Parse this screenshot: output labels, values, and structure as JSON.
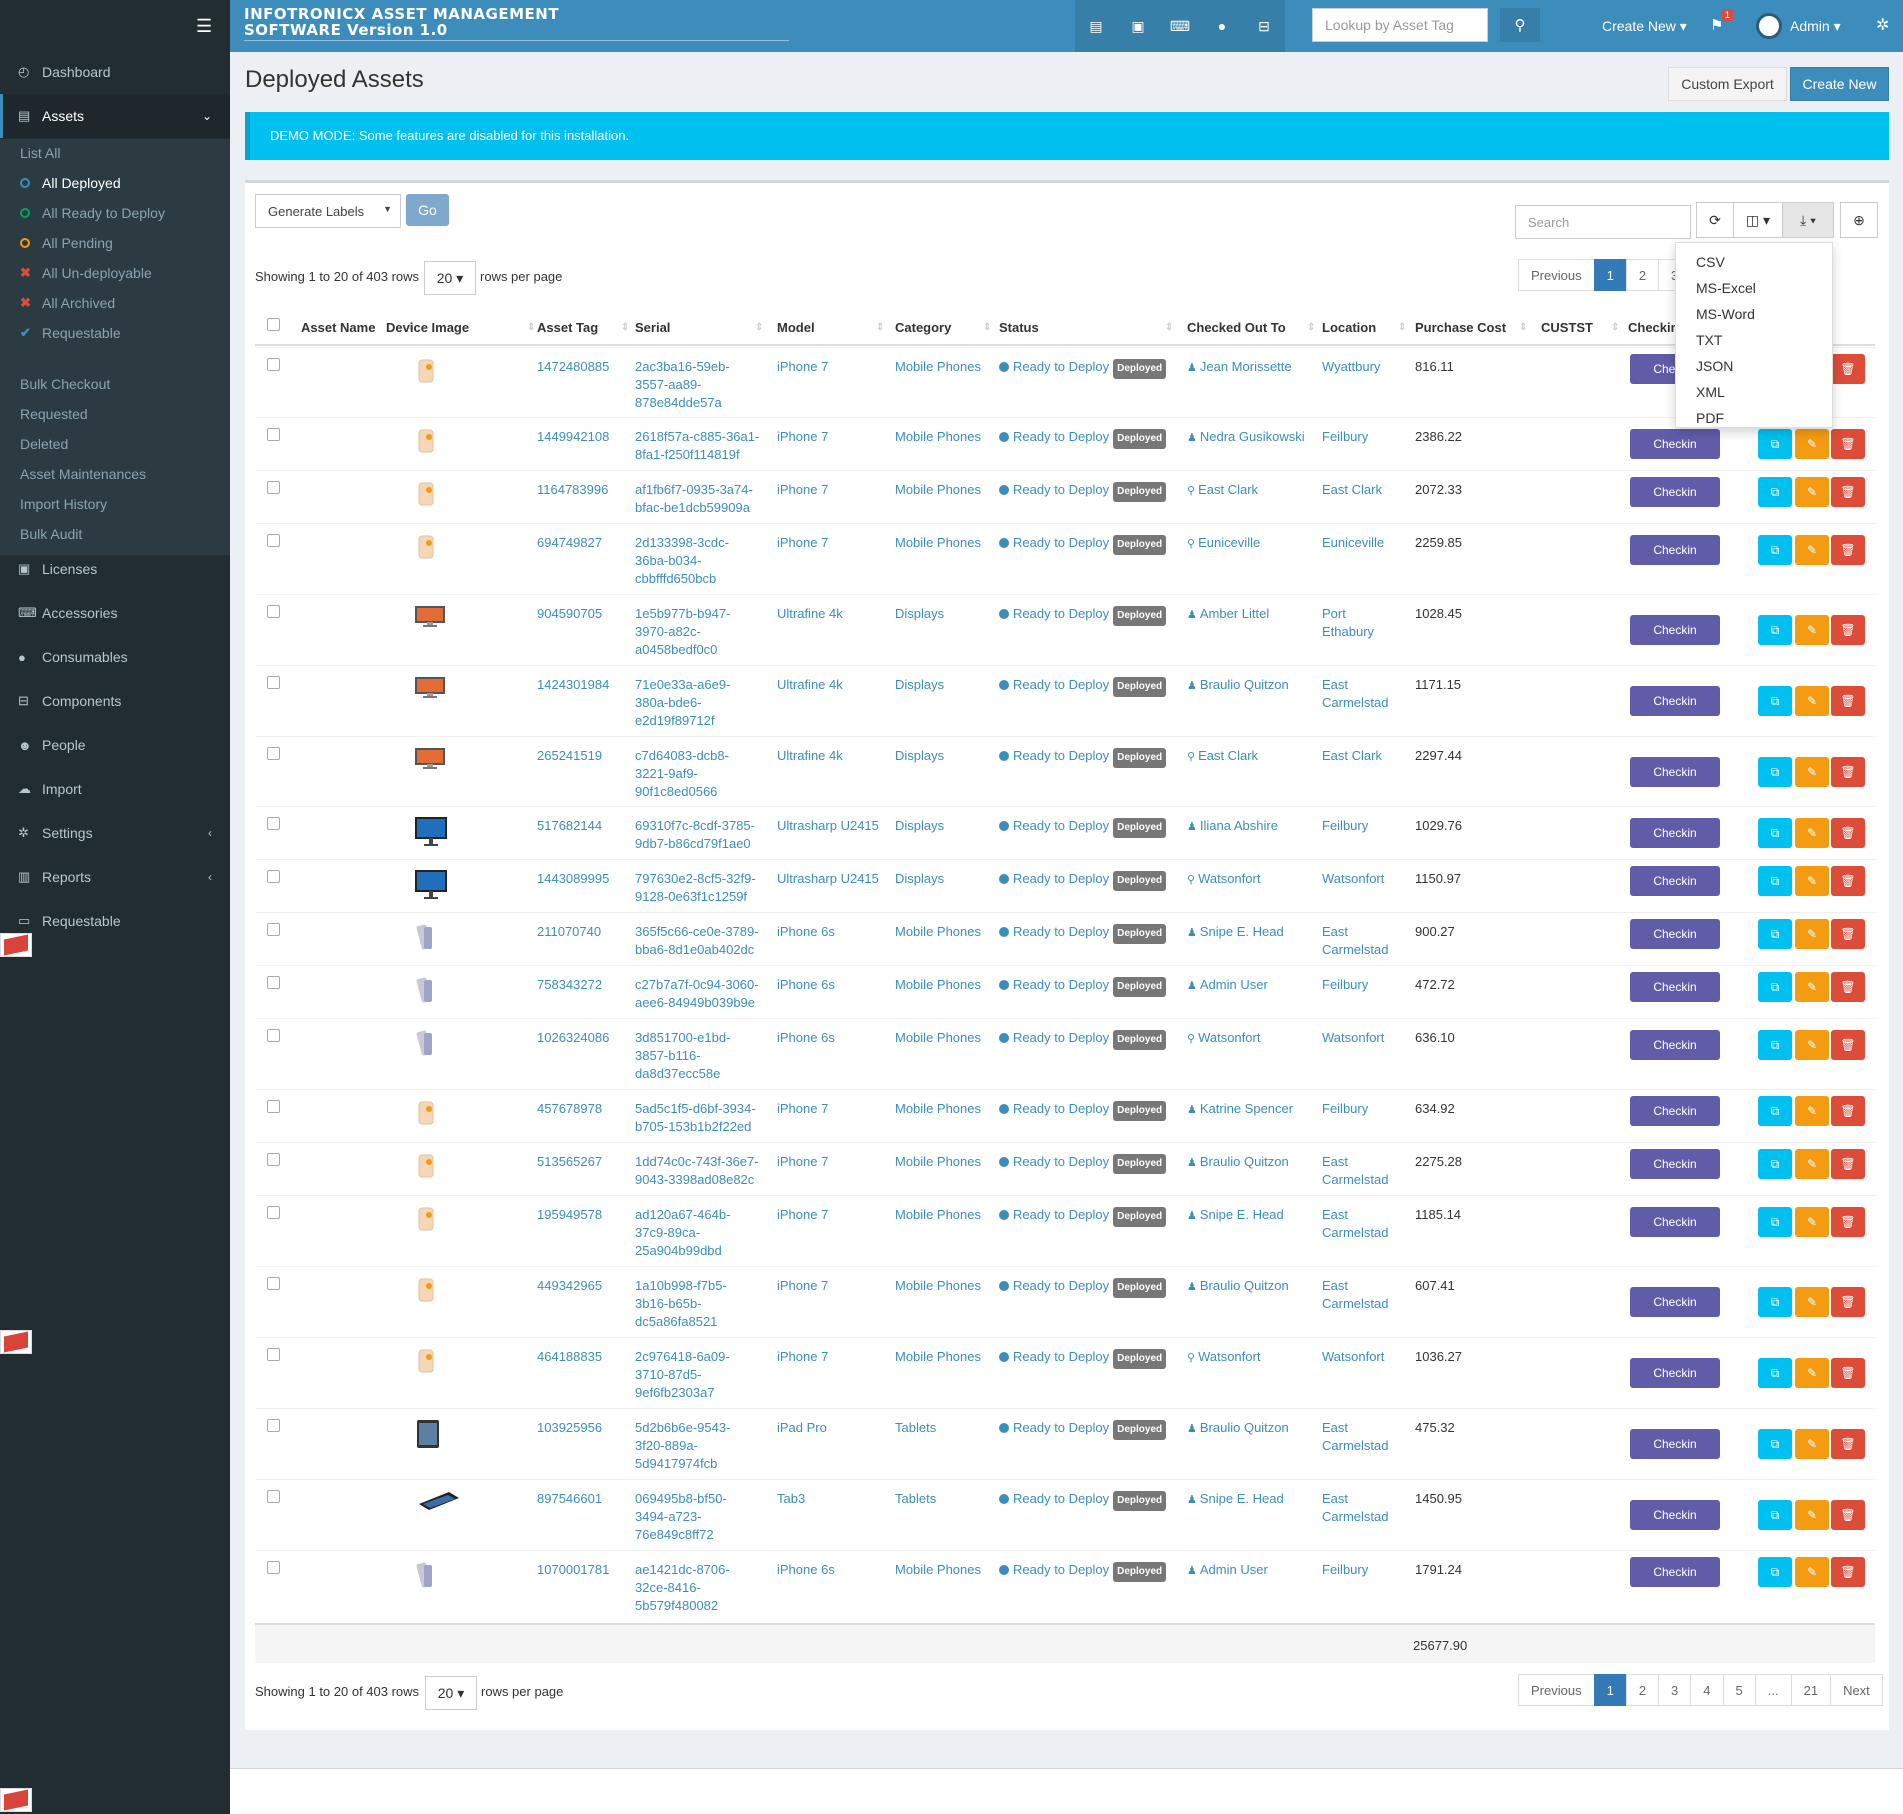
{
  "brand": {
    "line1": "INFOTRONICX ASSET MANAGEMENT",
    "line2": "SOFTWARE Version 1.0"
  },
  "topbar": {
    "lookup_placeholder": "Lookup by Asset Tag",
    "create_new": "Create New ▾",
    "alert_count": "1",
    "user": "Admin ▾",
    "icons": [
      "assets-icon",
      "licenses-icon",
      "accessories-icon",
      "consumables-icon",
      "components-icon"
    ]
  },
  "sidebar": {
    "items": [
      {
        "label": "Dashboard",
        "icon": "dashboard-icon"
      },
      {
        "label": "Assets",
        "icon": "assets-icon"
      },
      {
        "label": "Licenses",
        "icon": "licenses-icon"
      },
      {
        "label": "Accessories",
        "icon": "accessories-icon"
      },
      {
        "label": "Consumables",
        "icon": "consumables-icon"
      },
      {
        "label": "Components",
        "icon": "components-icon"
      },
      {
        "label": "People",
        "icon": "people-icon"
      },
      {
        "label": "Import",
        "icon": "import-icon"
      },
      {
        "label": "Settings",
        "icon": "settings-icon"
      },
      {
        "label": "Reports",
        "icon": "reports-icon"
      },
      {
        "label": "Requestable",
        "icon": "laptop-icon"
      }
    ],
    "asset_sub": [
      {
        "label": "List All"
      },
      {
        "label": "All Deployed",
        "color": "#3c8dbc"
      },
      {
        "label": "All Ready to Deploy",
        "color": "#00a65a"
      },
      {
        "label": "All Pending",
        "color": "#f39c12"
      },
      {
        "label": "All Un-deployable",
        "color": "#dd4b39"
      },
      {
        "label": "All Archived",
        "color": "#dd4b39"
      },
      {
        "label": "Requestable",
        "color": "#3c8dbc"
      },
      {
        "label": "Bulk Checkout"
      },
      {
        "label": "Requested"
      },
      {
        "label": "Deleted"
      },
      {
        "label": "Asset Maintenances"
      },
      {
        "label": "Import History"
      },
      {
        "label": "Bulk Audit"
      }
    ]
  },
  "page": {
    "title": "Deployed Assets",
    "custom_export": "Custom Export",
    "create_new": "Create New",
    "demo_notice": "DEMO MODE: Some features are disabled for this installation.",
    "generate_labels": "Generate Labels",
    "go": "Go",
    "search_placeholder": "Search",
    "showing": "Showing 1 to 20 of 403 rows",
    "rows_per_page_value": "20 ▾",
    "rows_per_page_suffix": "rows per page",
    "total_purchase_cost": "25677.90"
  },
  "export_menu": [
    "CSV",
    "MS-Excel",
    "MS-Word",
    "TXT",
    "JSON",
    "XML",
    "PDF"
  ],
  "pagination": {
    "top": [
      "Previous",
      "1",
      "2",
      "3",
      "Next"
    ],
    "bottom": [
      "Previous",
      "1",
      "2",
      "3",
      "4",
      "5",
      "...",
      "21",
      "Next"
    ]
  },
  "columns": [
    "Asset Name",
    "Device Image",
    "Asset Tag",
    "Serial",
    "Model",
    "Category",
    "Status",
    "Checked Out To",
    "Location",
    "Purchase Cost",
    "CUSTST",
    "Checkin"
  ],
  "status_label": "Ready to Deploy",
  "status_badge": "Deployed",
  "checkin_label": "Checkin",
  "rows": [
    {
      "tag": "1472480885",
      "serial": [
        "2ac3ba16-59eb-",
        "3557-aa89-",
        "878e84dde57a"
      ],
      "model": "iPhone 7",
      "category": "Mobile Phones",
      "to": "Jean Morissette",
      "to_type": "user",
      "loc": [
        "Wyattbury"
      ],
      "cost": "816.11",
      "img": "iphone7"
    },
    {
      "tag": "1449942108",
      "serial": [
        "2618f57a-c885-36a1-",
        "8fa1-f250f114819f"
      ],
      "model": "iPhone 7",
      "category": "Mobile Phones",
      "to": "Nedra Gusikowski",
      "to_type": "user",
      "loc": [
        "Feilbury"
      ],
      "cost": "2386.22",
      "img": "iphone7"
    },
    {
      "tag": "1164783996",
      "serial": [
        "af1fb6f7-0935-3a74-",
        "bfac-be1dcb59909a"
      ],
      "model": "iPhone 7",
      "category": "Mobile Phones",
      "to": "East Clark",
      "to_type": "location",
      "loc": [
        "East Clark"
      ],
      "cost": "2072.33",
      "img": "iphone7"
    },
    {
      "tag": "694749827",
      "serial": [
        "2d133398-3cdc-",
        "36ba-b034-",
        "cbbfffd650bcb"
      ],
      "model": "iPhone 7",
      "category": "Mobile Phones",
      "to": "Euniceville",
      "to_type": "location",
      "loc": [
        "Euniceville"
      ],
      "cost": "2259.85",
      "img": "iphone7"
    },
    {
      "tag": "904590705",
      "serial": [
        "1e5b977b-b947-",
        "3970-a82c-",
        "a0458bedf0c0"
      ],
      "model": "Ultrafine 4k",
      "category": "Displays",
      "to": "Amber Littel",
      "to_type": "user",
      "loc": [
        "Port",
        "Ethabury"
      ],
      "cost": "1028.45",
      "img": "ultrafine"
    },
    {
      "tag": "1424301984",
      "serial": [
        "71e0e33a-a6e9-",
        "380a-bde6-",
        "e2d19f89712f"
      ],
      "model": "Ultrafine 4k",
      "category": "Displays",
      "to": "Braulio Quitzon",
      "to_type": "user",
      "loc": [
        "East",
        "Carmelstad"
      ],
      "cost": "1171.15",
      "img": "ultrafine"
    },
    {
      "tag": "265241519",
      "serial": [
        "c7d64083-dcb8-",
        "3221-9af9-",
        "90f1c8ed0566"
      ],
      "model": "Ultrafine 4k",
      "category": "Displays",
      "to": "East Clark",
      "to_type": "location",
      "loc": [
        "East Clark"
      ],
      "cost": "2297.44",
      "img": "ultrafine"
    },
    {
      "tag": "517682144",
      "serial": [
        "69310f7c-8cdf-3785-",
        "9db7-b86cd79f1ae0"
      ],
      "model": "Ultrasharp U2415",
      "category": "Displays",
      "to": "Iliana Abshire",
      "to_type": "user",
      "loc": [
        "Feilbury"
      ],
      "cost": "1029.76",
      "img": "ultrasharp"
    },
    {
      "tag": "1443089995",
      "serial": [
        "797630e2-8cf5-32f9-",
        "9128-0e63f1c1259f"
      ],
      "model": "Ultrasharp U2415",
      "category": "Displays",
      "to": "Watsonfort",
      "to_type": "location",
      "loc": [
        "Watsonfort"
      ],
      "cost": "1150.97",
      "img": "ultrasharp"
    },
    {
      "tag": "211070740",
      "serial": [
        "365f5c66-ce0e-3789-",
        "bba6-8d1e0ab402dc"
      ],
      "model": "iPhone 6s",
      "category": "Mobile Phones",
      "to": "Snipe E. Head",
      "to_type": "user",
      "loc": [
        "East",
        "Carmelstad"
      ],
      "cost": "900.27",
      "img": "iphone6s"
    },
    {
      "tag": "758343272",
      "serial": [
        "c27b7a7f-0c94-3060-",
        "aee6-84949b039b9e"
      ],
      "model": "iPhone 6s",
      "category": "Mobile Phones",
      "to": "Admin User",
      "to_type": "user",
      "loc": [
        "Feilbury"
      ],
      "cost": "472.72",
      "img": "iphone6s"
    },
    {
      "tag": "1026324086",
      "serial": [
        "3d851700-e1bd-",
        "3857-b116-",
        "da8d37ecc58e"
      ],
      "model": "iPhone 6s",
      "category": "Mobile Phones",
      "to": "Watsonfort",
      "to_type": "location",
      "loc": [
        "Watsonfort"
      ],
      "cost": "636.10",
      "img": "iphone6s"
    },
    {
      "tag": "457678978",
      "serial": [
        "5ad5c1f5-d6bf-3934-",
        "b705-153b1b2f22ed"
      ],
      "model": "iPhone 7",
      "category": "Mobile Phones",
      "to": "Katrine Spencer",
      "to_type": "user",
      "loc": [
        "Feilbury"
      ],
      "cost": "634.92",
      "img": "iphone7"
    },
    {
      "tag": "513565267",
      "serial": [
        "1dd74c0c-743f-36e7-",
        "9043-3398ad08e82c"
      ],
      "model": "iPhone 7",
      "category": "Mobile Phones",
      "to": "Braulio Quitzon",
      "to_type": "user",
      "loc": [
        "East",
        "Carmelstad"
      ],
      "cost": "2275.28",
      "img": "iphone7"
    },
    {
      "tag": "195949578",
      "serial": [
        "ad120a67-464b-",
        "37c9-89ca-",
        "25a904b99dbd"
      ],
      "model": "iPhone 7",
      "category": "Mobile Phones",
      "to": "Snipe E. Head",
      "to_type": "user",
      "loc": [
        "East",
        "Carmelstad"
      ],
      "cost": "1185.14",
      "img": "iphone7"
    },
    {
      "tag": "449342965",
      "serial": [
        "1a10b998-f7b5-",
        "3b16-b65b-",
        "dc5a86fa8521"
      ],
      "model": "iPhone 7",
      "category": "Mobile Phones",
      "to": "Braulio Quitzon",
      "to_type": "user",
      "loc": [
        "East",
        "Carmelstad"
      ],
      "cost": "607.41",
      "img": "iphone7"
    },
    {
      "tag": "464188835",
      "serial": [
        "2c976418-6a09-",
        "3710-87d5-",
        "9ef6fb2303a7"
      ],
      "model": "iPhone 7",
      "category": "Mobile Phones",
      "to": "Watsonfort",
      "to_type": "location",
      "loc": [
        "Watsonfort"
      ],
      "cost": "1036.27",
      "img": "iphone7"
    },
    {
      "tag": "103925956",
      "serial": [
        "5d2b6b6e-9543-",
        "3f20-889a-",
        "5d9417974fcb"
      ],
      "model": "iPad Pro",
      "category": "Tablets",
      "to": "Braulio Quitzon",
      "to_type": "user",
      "loc": [
        "East",
        "Carmelstad"
      ],
      "cost": "475.32",
      "img": "ipad"
    },
    {
      "tag": "897546601",
      "serial": [
        "069495b8-bf50-",
        "3494-a723-",
        "76e849c8ff72"
      ],
      "model": "Tab3",
      "category": "Tablets",
      "to": "Snipe E. Head",
      "to_type": "user",
      "loc": [
        "East",
        "Carmelstad"
      ],
      "cost": "1450.95",
      "img": "tab3"
    },
    {
      "tag": "1070001781",
      "serial": [
        "ae1421dc-8706-",
        "32ce-8416-",
        "5b579f480082"
      ],
      "model": "iPhone 6s",
      "category": "Mobile Phones",
      "to": "Admin User",
      "to_type": "user",
      "loc": [
        "Feilbury"
      ],
      "cost": "1791.24",
      "img": "iphone6s"
    }
  ]
}
